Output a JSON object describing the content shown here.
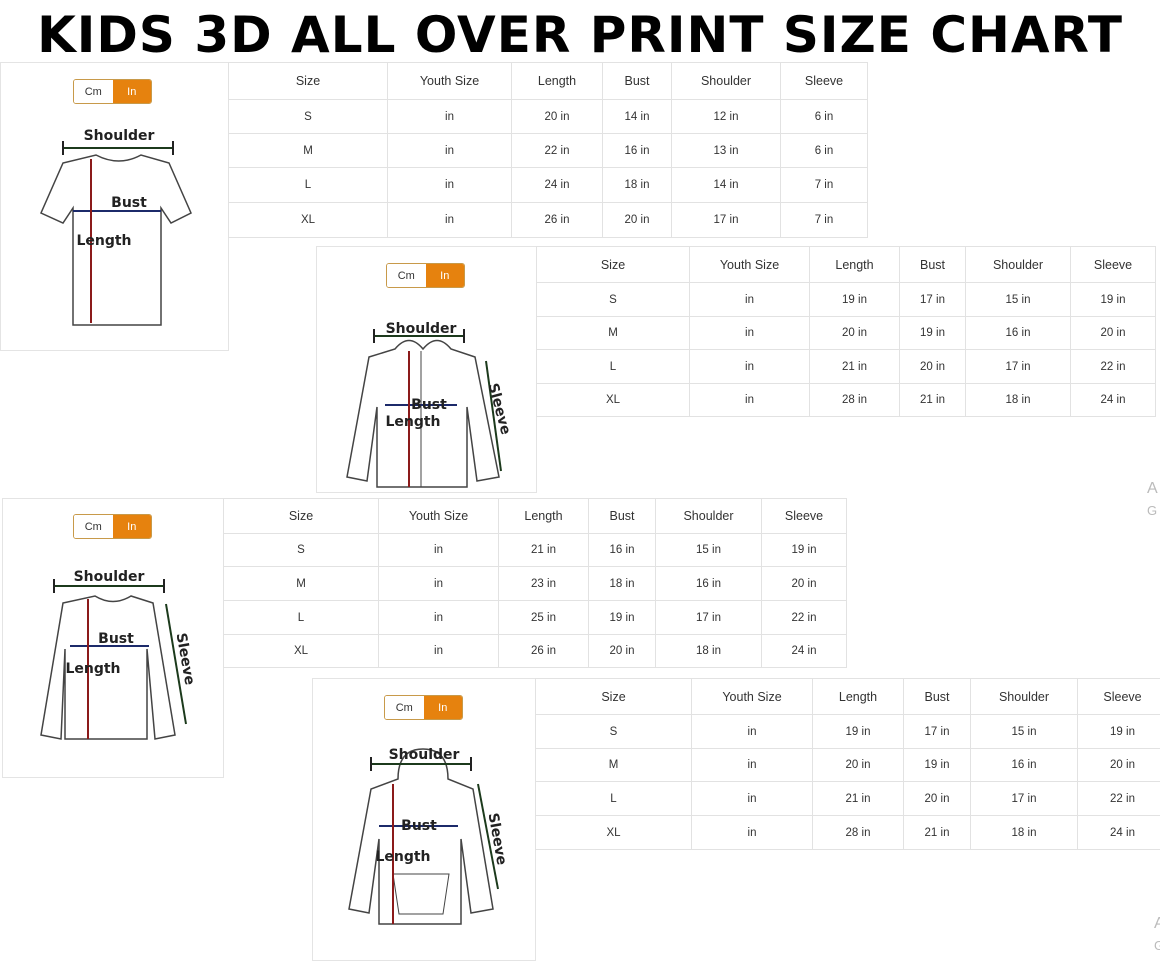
{
  "title": "KIDS 3D ALL OVER PRINT SIZE CHART",
  "panels": [
    {
      "toggle": [
        "Cm",
        "In"
      ],
      "diagram": {
        "shoulder": "Shoulder",
        "bust": "Bust",
        "length": "Length"
      },
      "table": {
        "header": [
          "Size",
          "Youth Size",
          "Length",
          "Bust",
          "Shoulder",
          "Sleeve"
        ],
        "rows": [
          [
            "S",
            "in",
            "20 in",
            "14 in",
            "12 in",
            "6 in"
          ],
          [
            "M",
            "in",
            "22 in",
            "16 in",
            "13 in",
            "6 in"
          ],
          [
            "L",
            "in",
            "24 in",
            "18 in",
            "14 in",
            "7 in"
          ],
          [
            "XL",
            "in",
            "26 in",
            "20 in",
            "17 in",
            "7 in"
          ]
        ]
      }
    },
    {
      "toggle": [
        "Cm",
        "In"
      ],
      "diagram": {
        "shoulder": "Shoulder",
        "bust": "Bust",
        "length": "Length",
        "sleeve": "Sleeve"
      },
      "table": {
        "header": [
          "Size",
          "Youth Size",
          "Length",
          "Bust",
          "Shoulder",
          "Sleeve"
        ],
        "rows": [
          [
            "S",
            "in",
            "19 in",
            "17 in",
            "15 in",
            "19 in"
          ],
          [
            "M",
            "in",
            "20 in",
            "19 in",
            "16 in",
            "20 in"
          ],
          [
            "L",
            "in",
            "21 in",
            "20 in",
            "17 in",
            "22 in"
          ],
          [
            "XL",
            "in",
            "28 in",
            "21 in",
            "18 in",
            "24 in"
          ]
        ]
      }
    },
    {
      "toggle": [
        "Cm",
        "In"
      ],
      "diagram": {
        "shoulder": "Shoulder",
        "bust": "Bust",
        "length": "Length",
        "sleeve": "Sleeve"
      },
      "table": {
        "header": [
          "Size",
          "Youth Size",
          "Length",
          "Bust",
          "Shoulder",
          "Sleeve"
        ],
        "rows": [
          [
            "S",
            "in",
            "21 in",
            "16 in",
            "15 in",
            "19 in"
          ],
          [
            "M",
            "in",
            "23 in",
            "18 in",
            "16 in",
            "20 in"
          ],
          [
            "L",
            "in",
            "25 in",
            "19 in",
            "17 in",
            "22 in"
          ],
          [
            "XL",
            "in",
            "26 in",
            "20 in",
            "18 in",
            "24 in"
          ]
        ]
      }
    },
    {
      "toggle": [
        "Cm",
        "In"
      ],
      "diagram": {
        "shoulder": "Shoulder",
        "bust": "Bust",
        "length": "Length",
        "sleeve": "Sleeve"
      },
      "table": {
        "header": [
          "Size",
          "Youth Size",
          "Length",
          "Bust",
          "Shoulder",
          "Sleeve"
        ],
        "rows": [
          [
            "S",
            "in",
            "19 in",
            "17 in",
            "15 in",
            "19 in"
          ],
          [
            "M",
            "in",
            "20 in",
            "19 in",
            "16 in",
            "20 in"
          ],
          [
            "L",
            "in",
            "21 in",
            "20 in",
            "17 in",
            "22 in"
          ],
          [
            "XL",
            "in",
            "28 in",
            "21 in",
            "18 in",
            "24 in"
          ]
        ]
      }
    }
  ],
  "watermark": [
    "A",
    "G",
    "A",
    "G"
  ]
}
